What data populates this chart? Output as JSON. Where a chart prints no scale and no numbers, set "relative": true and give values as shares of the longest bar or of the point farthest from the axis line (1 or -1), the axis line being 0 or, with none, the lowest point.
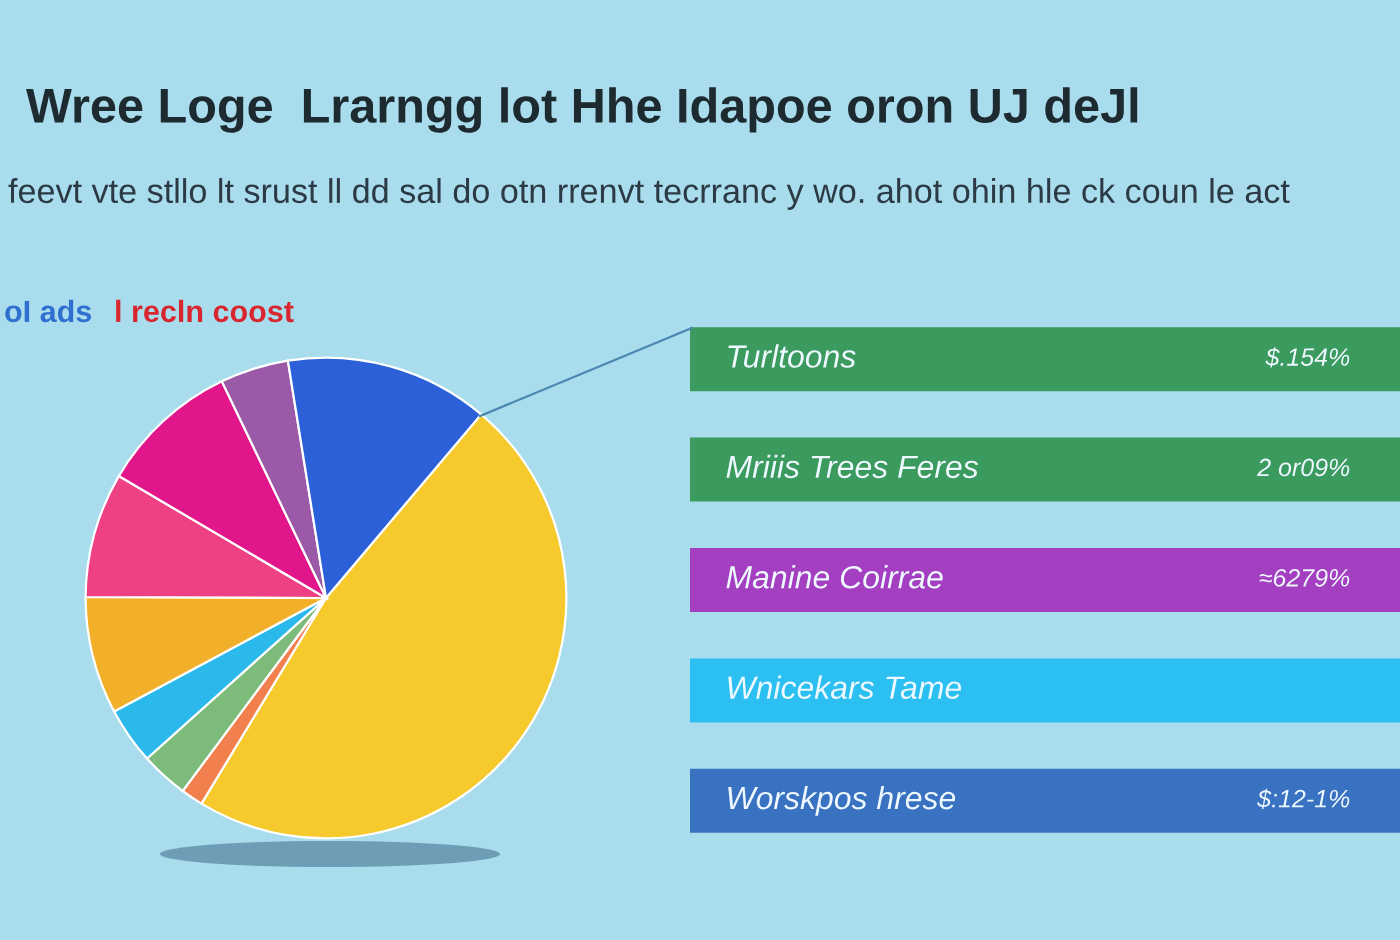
{
  "chart_data": [
    {
      "type": "pie",
      "title": "Wree Loge  Lrarngg lot Hhe Idapoe oron UJ deJl",
      "subtitle": "feevt vte stllo lt srust ll dd sal do otn rrenvt tecrranc y wo. ahot ohin hle ck coun le act",
      "annotations": [
        "oI ads",
        "l recln coost"
      ],
      "categories": [
        null,
        null,
        null,
        null,
        null,
        null,
        null,
        null,
        null
      ],
      "values": [
        47.5,
        1.5,
        3.2,
        3.8,
        7.9,
        8.4,
        9.4,
        4.6,
        13.7
      ],
      "colors": [
        "#f6c92c",
        "#f2804e",
        "#7dbb7a",
        "#2bb8ea",
        "#f2af2a",
        "#ee4084",
        "#e0168a",
        "#9a5aa8",
        "#2b60d8"
      ]
    },
    {
      "type": "bar",
      "orientation": "horizontal",
      "relative": true,
      "categories": [
        "Turltoons",
        "Mriiis Trees Feres",
        "Manine Coirrae",
        "Wnicekars Tame",
        "Worskpos hrese"
      ],
      "values": [
        1,
        1,
        1,
        1,
        1
      ],
      "colors": [
        "#3b9a5e",
        "#3b9a5e",
        "#a43fc2",
        "#2cc0f2",
        "#3a72c2"
      ],
      "annotations": [
        "$.154%",
        "2 or09%",
        "≈6279%",
        "$:12-1%"
      ]
    }
  ]
}
